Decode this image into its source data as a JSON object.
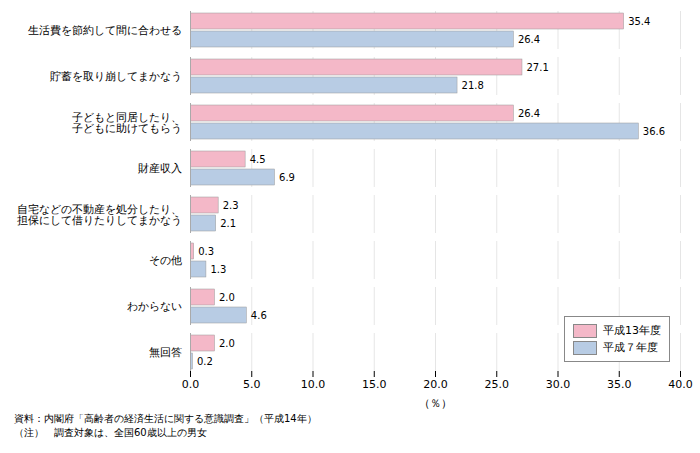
{
  "chart_data": {
    "type": "bar",
    "orientation": "horizontal",
    "categories": [
      "生活費を節約して間に合わせる",
      "貯蓄を取り崩してまかなう",
      "子どもと同居したり、\n子どもに助けてもらう",
      "財産収入",
      "自宅などの不動産を処分したり、\n担保にして借りたりしてまかなう",
      "その他",
      "わからない",
      "無回答"
    ],
    "series": [
      {
        "name": "平成13年度",
        "color": "#f4b8c8",
        "values": [
          35.4,
          27.1,
          26.4,
          4.5,
          2.3,
          0.3,
          2.0,
          2.0
        ],
        "value_labels": [
          "35.4",
          "27.1",
          "26.4",
          "4.5",
          "2.3",
          "0.3",
          "2.0",
          "2.0"
        ]
      },
      {
        "name": "平成７年度",
        "color": "#b8cce4",
        "values": [
          26.4,
          21.8,
          36.6,
          6.9,
          2.1,
          1.3,
          4.6,
          0.2
        ]
      }
    ],
    "xlim": [
      0,
      40.0
    ],
    "xticks": [
      {
        "value": 0,
        "label": "0.0"
      },
      {
        "value": 5,
        "label": "5.0"
      },
      {
        "value": 10,
        "label": "10.0"
      },
      {
        "value": 15,
        "label": "15.0"
      },
      {
        "value": 20,
        "label": "20.0"
      },
      {
        "value": 25,
        "label": "25.0"
      },
      {
        "value": 30,
        "label": "30.0"
      },
      {
        "value": 35,
        "label": "35.0"
      },
      {
        "value": 40,
        "label": "40.0"
      }
    ],
    "xlabel": "（％）",
    "grid": true,
    "legend": "lower right",
    "data_labels": true,
    "annotations": [
      "資料：内閣府「高齢者の経済生活に関する意識調査」（平成14年）",
      "（注）　調査対象は、全国60歳以上の男女"
    ]
  }
}
